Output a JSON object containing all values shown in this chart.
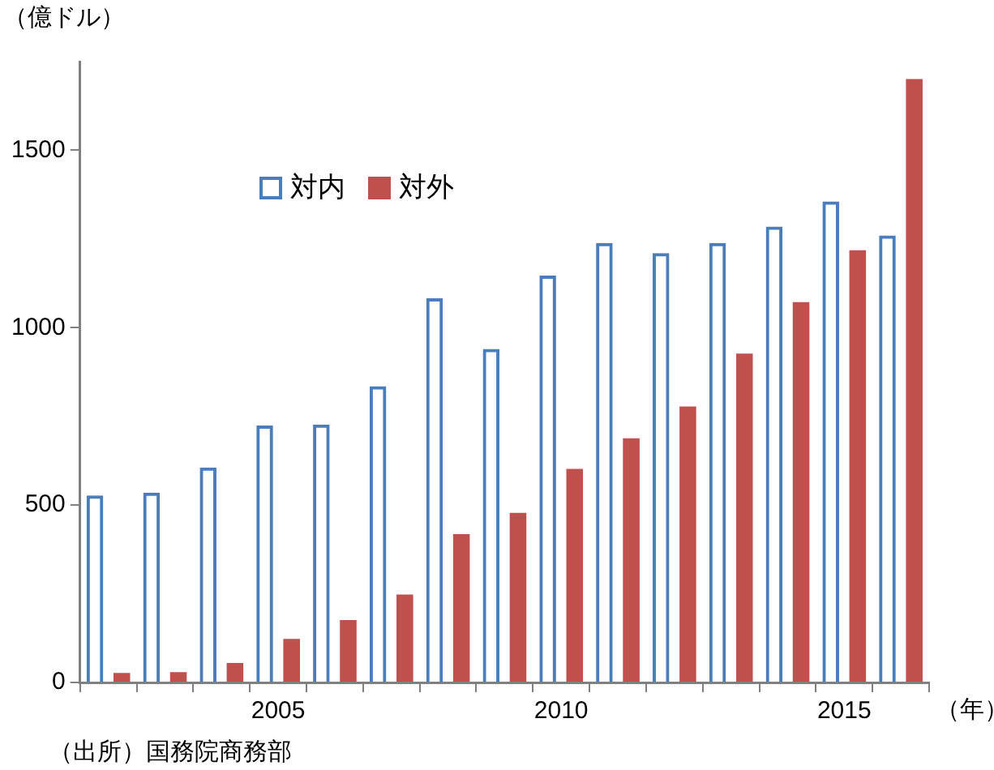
{
  "chart_data": {
    "type": "bar",
    "ylabel": "（億ドル）",
    "xlabel": "（年）",
    "annotations": [
      "（出所）国務院商務部"
    ],
    "categories": [
      null,
      null,
      null,
      "2005",
      null,
      null,
      null,
      null,
      "2010",
      null,
      null,
      null,
      null,
      "2015",
      null
    ],
    "series": [
      {
        "name": "対内",
        "color": "#4a7ebb",
        "values": [
          527,
          535,
          606,
          724,
          727,
          835,
          1083,
          940,
          1147,
          1239,
          1210,
          1239,
          1285,
          1356,
          1260
        ]
      },
      {
        "name": "対外",
        "color": "#c0504d",
        "values": [
          27,
          29,
          55,
          123,
          176,
          248,
          418,
          478,
          602,
          688,
          778,
          927,
          1072,
          1218,
          1701
        ]
      }
    ],
    "ylim": [
      0,
      1750
    ],
    "yticks": [
      0,
      500,
      1000,
      1500
    ],
    "grid": false,
    "legend": "top left"
  }
}
